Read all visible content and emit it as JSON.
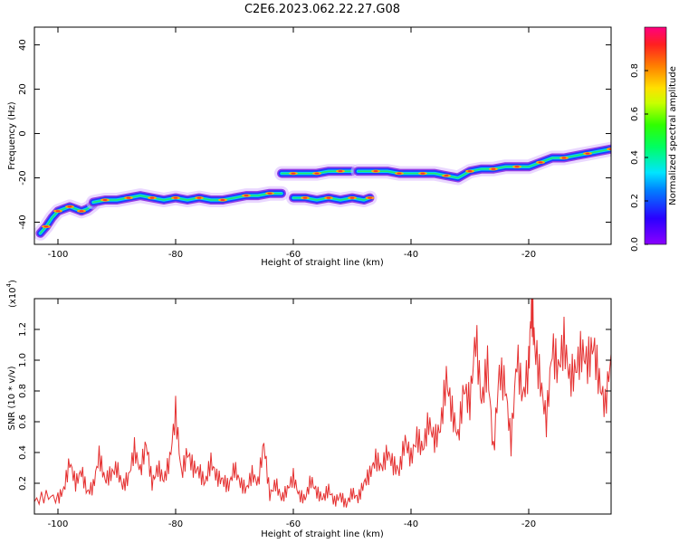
{
  "chart_data": [
    {
      "type": "heatmap",
      "title": "C2E6.2023.062.22.27.G08",
      "xlabel": "Height of straight line (km)",
      "ylabel": "Frequency (Hz)",
      "xlim": [
        -104,
        -6
      ],
      "ylim": [
        -50,
        48
      ],
      "x_ticks": [
        -100,
        -80,
        -60,
        -40,
        -20
      ],
      "y_ticks": [
        40,
        20,
        0,
        -20,
        -40
      ],
      "x_tick_labels": [
        "-100",
        "-80",
        "-60",
        "-40",
        "-20"
      ],
      "y_tick_labels": [
        "40",
        "20",
        "0",
        "-20",
        "-40"
      ],
      "colorbar": {
        "label": "Normalized spectral amplitude",
        "range": [
          0,
          1
        ],
        "ticks": [
          0.0,
          0.2,
          0.4,
          0.6,
          0.8
        ],
        "tick_labels": [
          "0.0",
          "0.2",
          "0.4",
          "0.6",
          "0.8"
        ],
        "colormap": "rainbow"
      },
      "tracks": [
        {
          "x": [
            -103,
            -102,
            -101,
            -100,
            -99,
            -98,
            -97,
            -96,
            -95,
            -94
          ],
          "y": [
            -45,
            -42,
            -38,
            -35,
            -34,
            -33,
            -34,
            -35,
            -34,
            -32
          ]
        },
        {
          "x": [
            -94,
            -92,
            -90,
            -88,
            -86,
            -84,
            -82,
            -80,
            -78,
            -76,
            -74,
            -72,
            -70,
            -68,
            -66,
            -64,
            -62
          ],
          "y": [
            -31,
            -30,
            -30,
            -29,
            -28,
            -29,
            -30,
            -29,
            -30,
            -29,
            -30,
            -30,
            -29,
            -28,
            -28,
            -27,
            -27
          ]
        },
        {
          "x": [
            -62,
            -60,
            -58,
            -56,
            -54,
            -52,
            -50
          ],
          "y": [
            -18,
            -18,
            -18,
            -18,
            -17,
            -17,
            -17
          ]
        },
        {
          "x": [
            -60,
            -58,
            -56,
            -54,
            -52,
            -50,
            -48,
            -47
          ],
          "y": [
            -29,
            -29,
            -30,
            -29,
            -30,
            -29,
            -30,
            -29
          ]
        },
        {
          "x": [
            -49,
            -46,
            -44,
            -42,
            -40,
            -38,
            -36,
            -34,
            -32,
            -30,
            -28,
            -26,
            -24,
            -22,
            -20,
            -18,
            -16,
            -14,
            -12,
            -10,
            -8,
            -6
          ],
          "y": [
            -17,
            -17,
            -17,
            -18,
            -18,
            -18,
            -18,
            -19,
            -20,
            -17,
            -16,
            -16,
            -15,
            -15,
            -15,
            -13,
            -11,
            -11,
            -10,
            -9,
            -8,
            -7
          ]
        }
      ]
    },
    {
      "type": "line",
      "xlabel": "Height of straight line (km)",
      "ylabel": "SNR (10 * v/v)",
      "y_multiplier": "(x10",
      "y_multiplier_exp": "4",
      "y_multiplier_close": ")",
      "xlim": [
        -104,
        -6
      ],
      "ylim": [
        0,
        1.4
      ],
      "x_ticks": [
        -100,
        -80,
        -60,
        -40,
        -20
      ],
      "y_ticks": [
        0.2,
        0.4,
        0.6,
        0.8,
        1.0,
        1.2
      ],
      "x_tick_labels": [
        "-100",
        "-80",
        "-60",
        "-40",
        "-20"
      ],
      "y_tick_labels": [
        "0.2",
        "0.4",
        "0.6",
        "0.8",
        "1.0",
        "1.2"
      ],
      "series": [
        {
          "color": "#e53030",
          "x": [
            -104,
            -102,
            -100,
            -99,
            -98,
            -97,
            -96,
            -95,
            -94,
            -93,
            -92,
            -91,
            -90,
            -89,
            -88,
            -87,
            -86,
            -85,
            -84,
            -83,
            -82,
            -81,
            -80,
            -79,
            -78,
            -77,
            -76,
            -75,
            -74,
            -73,
            -72,
            -71,
            -70,
            -69,
            -68,
            -67,
            -66,
            -65,
            -64,
            -63,
            -62,
            -61,
            -60,
            -59,
            -58,
            -57,
            -56,
            -55,
            -54,
            -53,
            -52,
            -51,
            -50,
            -49,
            -48,
            -47,
            -46,
            -45,
            -44,
            -43,
            -42,
            -41,
            -40,
            -39,
            -38,
            -37,
            -36,
            -35,
            -34,
            -33,
            -32,
            -31,
            -30,
            -29,
            -28,
            -27,
            -26,
            -25,
            -24,
            -23,
            -22,
            -21,
            -20,
            -19.5,
            -19,
            -18,
            -17,
            -16,
            -15,
            -14,
            -13,
            -12,
            -11,
            -10,
            -9,
            -8,
            -7,
            -6
          ],
          "y": [
            0.08,
            0.12,
            0.1,
            0.16,
            0.34,
            0.2,
            0.28,
            0.14,
            0.18,
            0.38,
            0.22,
            0.26,
            0.3,
            0.18,
            0.24,
            0.42,
            0.28,
            0.46,
            0.2,
            0.3,
            0.22,
            0.35,
            0.66,
            0.26,
            0.4,
            0.3,
            0.28,
            0.2,
            0.34,
            0.24,
            0.22,
            0.18,
            0.3,
            0.2,
            0.16,
            0.26,
            0.2,
            0.46,
            0.12,
            0.2,
            0.1,
            0.16,
            0.24,
            0.12,
            0.1,
            0.22,
            0.14,
            0.1,
            0.16,
            0.08,
            0.12,
            0.06,
            0.14,
            0.1,
            0.2,
            0.26,
            0.36,
            0.3,
            0.4,
            0.32,
            0.28,
            0.48,
            0.36,
            0.5,
            0.42,
            0.6,
            0.48,
            0.56,
            0.88,
            0.66,
            0.5,
            0.82,
            0.72,
            1.16,
            0.72,
            0.98,
            0.4,
            0.92,
            0.84,
            0.46,
            1.02,
            0.76,
            0.96,
            1.4,
            1.1,
            0.86,
            0.6,
            1.08,
            0.94,
            1.12,
            0.88,
            0.94,
            1.06,
            0.98,
            1.1,
            0.86,
            0.7,
            1.04
          ]
        }
      ]
    }
  ]
}
